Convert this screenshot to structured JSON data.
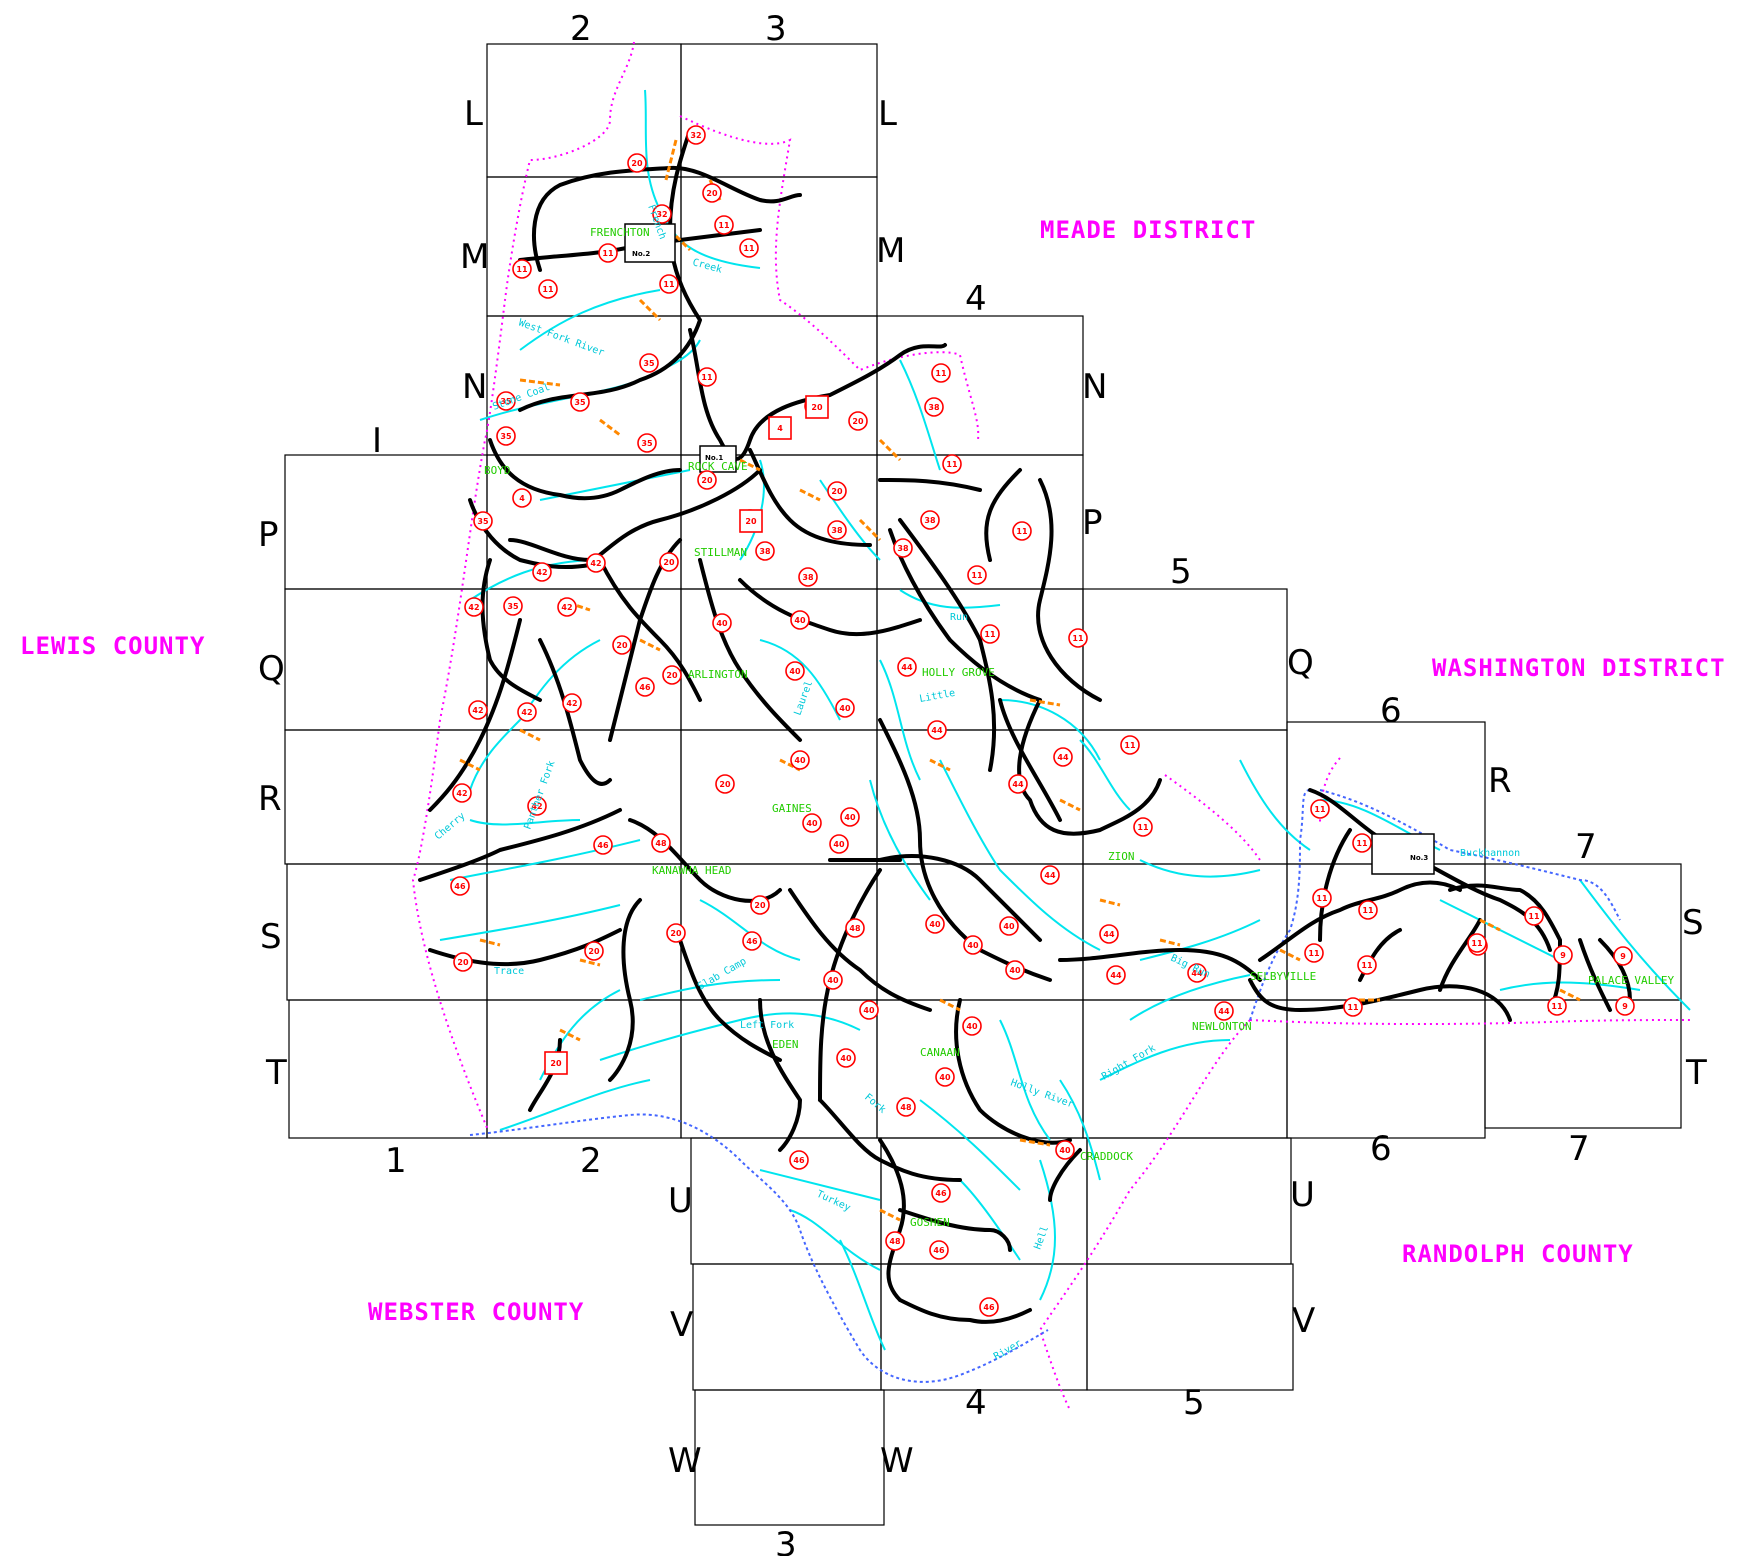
{
  "columns_top": [
    "2",
    "3"
  ],
  "columns_bottom": [
    "1",
    "2",
    "3",
    "4",
    "5",
    "6",
    "7"
  ],
  "column_labels_mid": [
    "4",
    "5",
    "6",
    "7"
  ],
  "rows_left": [
    "L",
    "M",
    "N",
    "P",
    "Q",
    "R",
    "S",
    "T",
    "U",
    "V",
    "W"
  ],
  "rows_right": [
    "L",
    "M",
    "N",
    "P",
    "Q",
    "R",
    "S",
    "T",
    "U",
    "V",
    "W"
  ],
  "extra_labels": {
    "i": "I"
  },
  "regions": {
    "meade": "MEADE DISTRICT",
    "lewis": "LEWIS COUNTY",
    "washington": "WASHINGTON DISTRICT",
    "randolph": "RANDOLPH COUNTY",
    "webster": "WEBSTER COUNTY"
  },
  "places": {
    "frenchton": "FRENCHTON",
    "rock_cave": "ROCK CAVE",
    "stillman": "STILLMAN",
    "arlington": "ARLINGTON",
    "holly_grove": "HOLLY GROVE",
    "gaines": "GAINES",
    "kanawha_head": "KANAWHA HEAD",
    "zion": "ZION",
    "selbyville": "SELBYVILLE",
    "newlonton": "NEWLONTON",
    "palace_valley": "PALACE VALLEY",
    "eden": "EDEN",
    "canaan": "CANAAN",
    "craddock": "CRADDOCK",
    "goshen": "GOSHEN",
    "boyd": "BOYD"
  },
  "streams": {
    "french": "French",
    "creek": "Creek",
    "west_fork_river": "West Fork River",
    "stone_coal": "Stone Coal",
    "little": "Little",
    "run": "Run",
    "left_fork": "Left Fork",
    "right_fork": "Right Fork",
    "laurel": "Laurel",
    "buckhannon": "Buckhannon",
    "panther_fork": "Panther Fork",
    "turkey": "Turkey",
    "slab_camp": "Slab Camp",
    "big_run": "Big Run",
    "holly_river": "Holly River",
    "cherry": "Cherry",
    "fork": "Fork",
    "river": "River",
    "hell": "Hell",
    "trace": "Trace"
  },
  "boxes": {
    "no2": "No.2",
    "no3": "No.3",
    "no1": "No.1"
  },
  "route_numbers": {
    "r11": "11",
    "r20": "20",
    "r32": "32",
    "r35": "35",
    "r38": "38",
    "r40": "40",
    "r42": "42",
    "r44": "44",
    "r46": "46",
    "r4": "4",
    "r9": "9",
    "r48": "48"
  },
  "colors": {
    "road": "#000000",
    "stream": "#00e5ee",
    "boundary": "#ff00ff",
    "county_river": "#4466ff",
    "route_circle": "#ff0000",
    "grid": "#000000",
    "road_side": "#ff8800",
    "place": "#22cc00"
  }
}
